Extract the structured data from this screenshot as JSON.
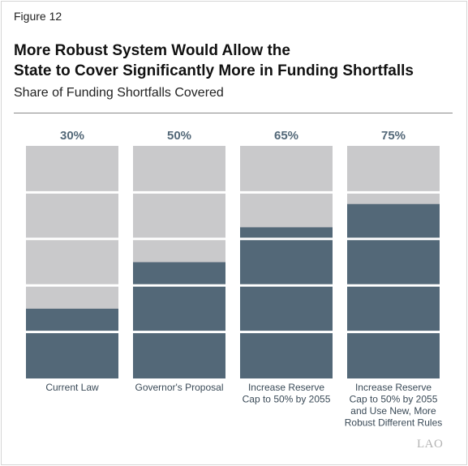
{
  "figure_label": "Figure 12",
  "title_line1": "More Robust System Would Allow the",
  "title_line2": "State to Cover Significantly More in Funding Shortfalls",
  "subtitle": "Share of Funding Shortfalls Covered",
  "logo_text": "LAO",
  "colors": {
    "covered": "#536878",
    "uncovered": "#c9c9cb",
    "label_text": "#536878",
    "divider": "#ffffff"
  },
  "chart_data": {
    "type": "bar",
    "orientation": "vertical",
    "stacked": true,
    "ylim": [
      0,
      100
    ],
    "segments_per_bar": 5,
    "categories": [
      [
        "Current Law"
      ],
      [
        "Governor's Proposal"
      ],
      [
        "Increase Reserve",
        "Cap to 50% by 2055"
      ],
      [
        "Increase Reserve",
        "Cap to 50% by 2055",
        "and Use New, More",
        "Robust Different Rules"
      ]
    ],
    "values": [
      30,
      50,
      65,
      75
    ],
    "value_labels": [
      "30%",
      "50%",
      "65%",
      "75%"
    ]
  }
}
